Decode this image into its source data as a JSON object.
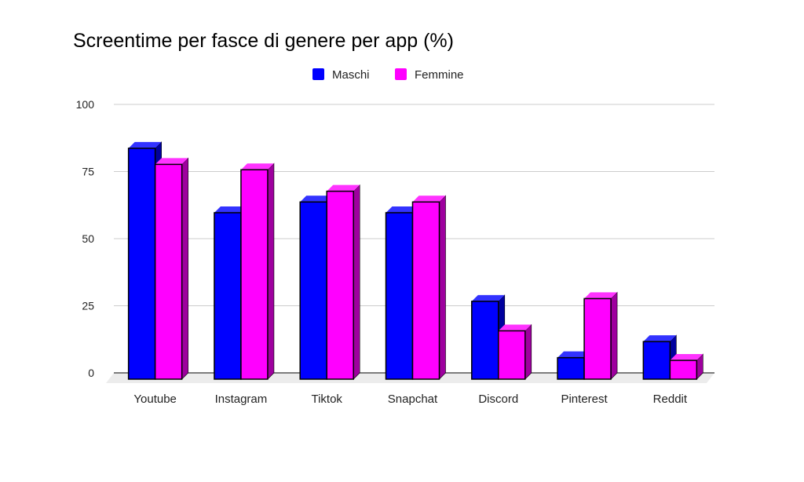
{
  "chart_data": {
    "type": "bar",
    "title": "Screentime per fasce di genere per app (%)",
    "categories": [
      "Youtube",
      "Instagram",
      "Tiktok",
      "Snapchat",
      "Discord",
      "Pinterest",
      "Reddit"
    ],
    "series": [
      {
        "name": "Maschi",
        "color": "#0000ff",
        "values": [
          86,
          62,
          66,
          62,
          29,
          8,
          14
        ]
      },
      {
        "name": "Femmine",
        "color": "#ff00ff",
        "values": [
          80,
          78,
          70,
          66,
          18,
          30,
          7
        ]
      }
    ],
    "yticks": [
      "0",
      "25",
      "50",
      "75",
      "100"
    ],
    "ylim": [
      0,
      100
    ],
    "grid": true,
    "legend": "top",
    "style": "3d"
  }
}
